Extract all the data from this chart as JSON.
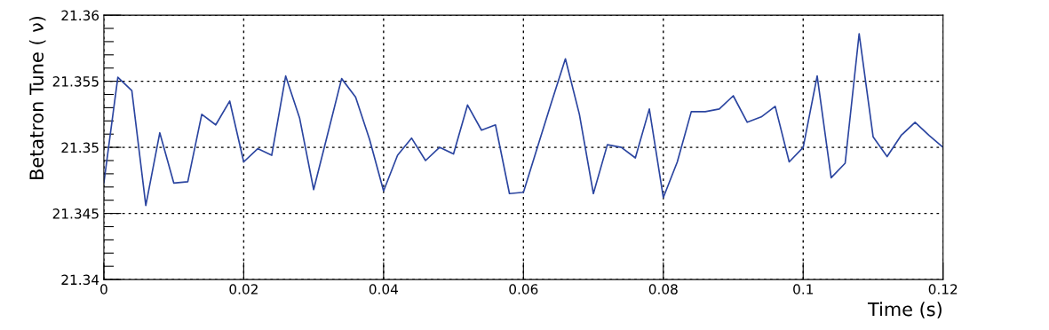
{
  "chart_data": {
    "type": "line",
    "xlabel": "Time (s)",
    "ylabel": "Betatron Tune ( ν)",
    "x": [
      0,
      0.002,
      0.004,
      0.006,
      0.008,
      0.01,
      0.012,
      0.014,
      0.016,
      0.018,
      0.02,
      0.022,
      0.024,
      0.026,
      0.028,
      0.03,
      0.032,
      0.034,
      0.036,
      0.038,
      0.04,
      0.042,
      0.044,
      0.046,
      0.048,
      0.05,
      0.052,
      0.054,
      0.056,
      0.058,
      0.06,
      0.062,
      0.064,
      0.066,
      0.068,
      0.07,
      0.072,
      0.074,
      0.076,
      0.078,
      0.08,
      0.082,
      0.084,
      0.086,
      0.088,
      0.09,
      0.092,
      0.094,
      0.096,
      0.098,
      0.1,
      0.102,
      0.104,
      0.106,
      0.108,
      0.11,
      0.112,
      0.114,
      0.116,
      0.118,
      0.12
    ],
    "series": [
      {
        "color": "#2b45a0",
        "values": [
          21.3473,
          21.3553,
          21.3543,
          21.3456,
          21.3511,
          21.3473,
          21.3474,
          21.3525,
          21.3517,
          21.3535,
          21.3489,
          21.3499,
          21.3494,
          21.3554,
          21.3522,
          21.3468,
          21.351,
          21.3552,
          21.3538,
          21.3506,
          21.3467,
          21.3494,
          21.3507,
          21.349,
          21.35,
          21.3495,
          21.3532,
          21.3513,
          21.3517,
          21.3465,
          21.3466,
          21.35,
          21.3534,
          21.3567,
          21.3525,
          21.3465,
          21.3502,
          21.35,
          21.3492,
          21.3529,
          21.3462,
          21.3489,
          21.3527,
          21.3527,
          21.3529,
          21.3539,
          21.3519,
          21.3523,
          21.3531,
          21.3489,
          21.35,
          21.3554,
          21.3477,
          21.3488,
          21.3586,
          21.3508,
          21.3493,
          21.3509,
          21.3519,
          21.3509,
          21.35
        ]
      }
    ],
    "xlim": [
      0,
      0.12
    ],
    "ylim": [
      21.34,
      21.36
    ],
    "xticks": [
      0,
      0.02,
      0.04,
      0.06,
      0.08,
      0.1,
      0.12
    ],
    "yticks": [
      21.34,
      {
        "value": 21.341,
        "label": null
      },
      {
        "value": 21.342,
        "label": null
      },
      {
        "value": 21.343,
        "label": null
      },
      {
        "value": 21.344,
        "label": null
      },
      21.345,
      {
        "value": 21.346,
        "label": null
      },
      {
        "value": 21.347,
        "label": null
      },
      {
        "value": 21.348,
        "label": null
      },
      {
        "value": 21.349,
        "label": null
      },
      21.35,
      {
        "value": 21.351,
        "label": null
      },
      {
        "value": 21.352,
        "label": null
      },
      {
        "value": 21.353,
        "label": null
      },
      {
        "value": 21.354,
        "label": null
      },
      21.355,
      {
        "value": 21.356,
        "label": null
      },
      {
        "value": 21.357,
        "label": null
      },
      {
        "value": 21.358,
        "label": null
      },
      {
        "value": 21.359,
        "label": null
      },
      21.36
    ],
    "grid": true,
    "marker": "none",
    "line_style": "solid"
  }
}
